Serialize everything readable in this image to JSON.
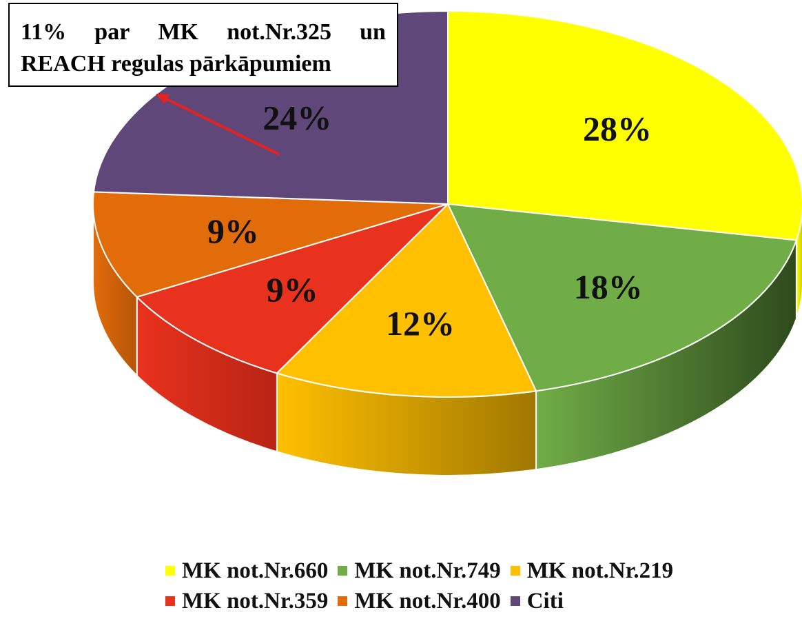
{
  "chart_data": {
    "type": "pie",
    "title": "",
    "slices": [
      {
        "name": "MK not.Nr.660",
        "value": 28,
        "label": "28%",
        "color": "#ffff00",
        "side": "#cccc00"
      },
      {
        "name": "MK not.Nr.749",
        "value": 18,
        "label": "18%",
        "color": "#70ad47",
        "side": "#2e4a1c"
      },
      {
        "name": "MK not.Nr.219",
        "value": 12,
        "label": "12%",
        "color": "#ffc000",
        "side": "#a07800"
      },
      {
        "name": "MK not.Nr.359",
        "value": 9,
        "label": "9%",
        "color": "#e8321e",
        "side": "#b82414"
      },
      {
        "name": "MK not.Nr.400",
        "value": 9,
        "label": "9%",
        "color": "#e36c0a",
        "side": "#b45508"
      },
      {
        "name": "Citi",
        "value": 24,
        "label": "24%",
        "color": "#5f4879",
        "side": "#3f2f52"
      }
    ],
    "legend_position": "bottom",
    "annotation": {
      "line1_words": [
        "11%",
        "par",
        "MK",
        "not.Nr.325",
        "un"
      ],
      "line2": "REACH regulas pārkāpumiem",
      "arrow_color": "#e8201e"
    }
  }
}
